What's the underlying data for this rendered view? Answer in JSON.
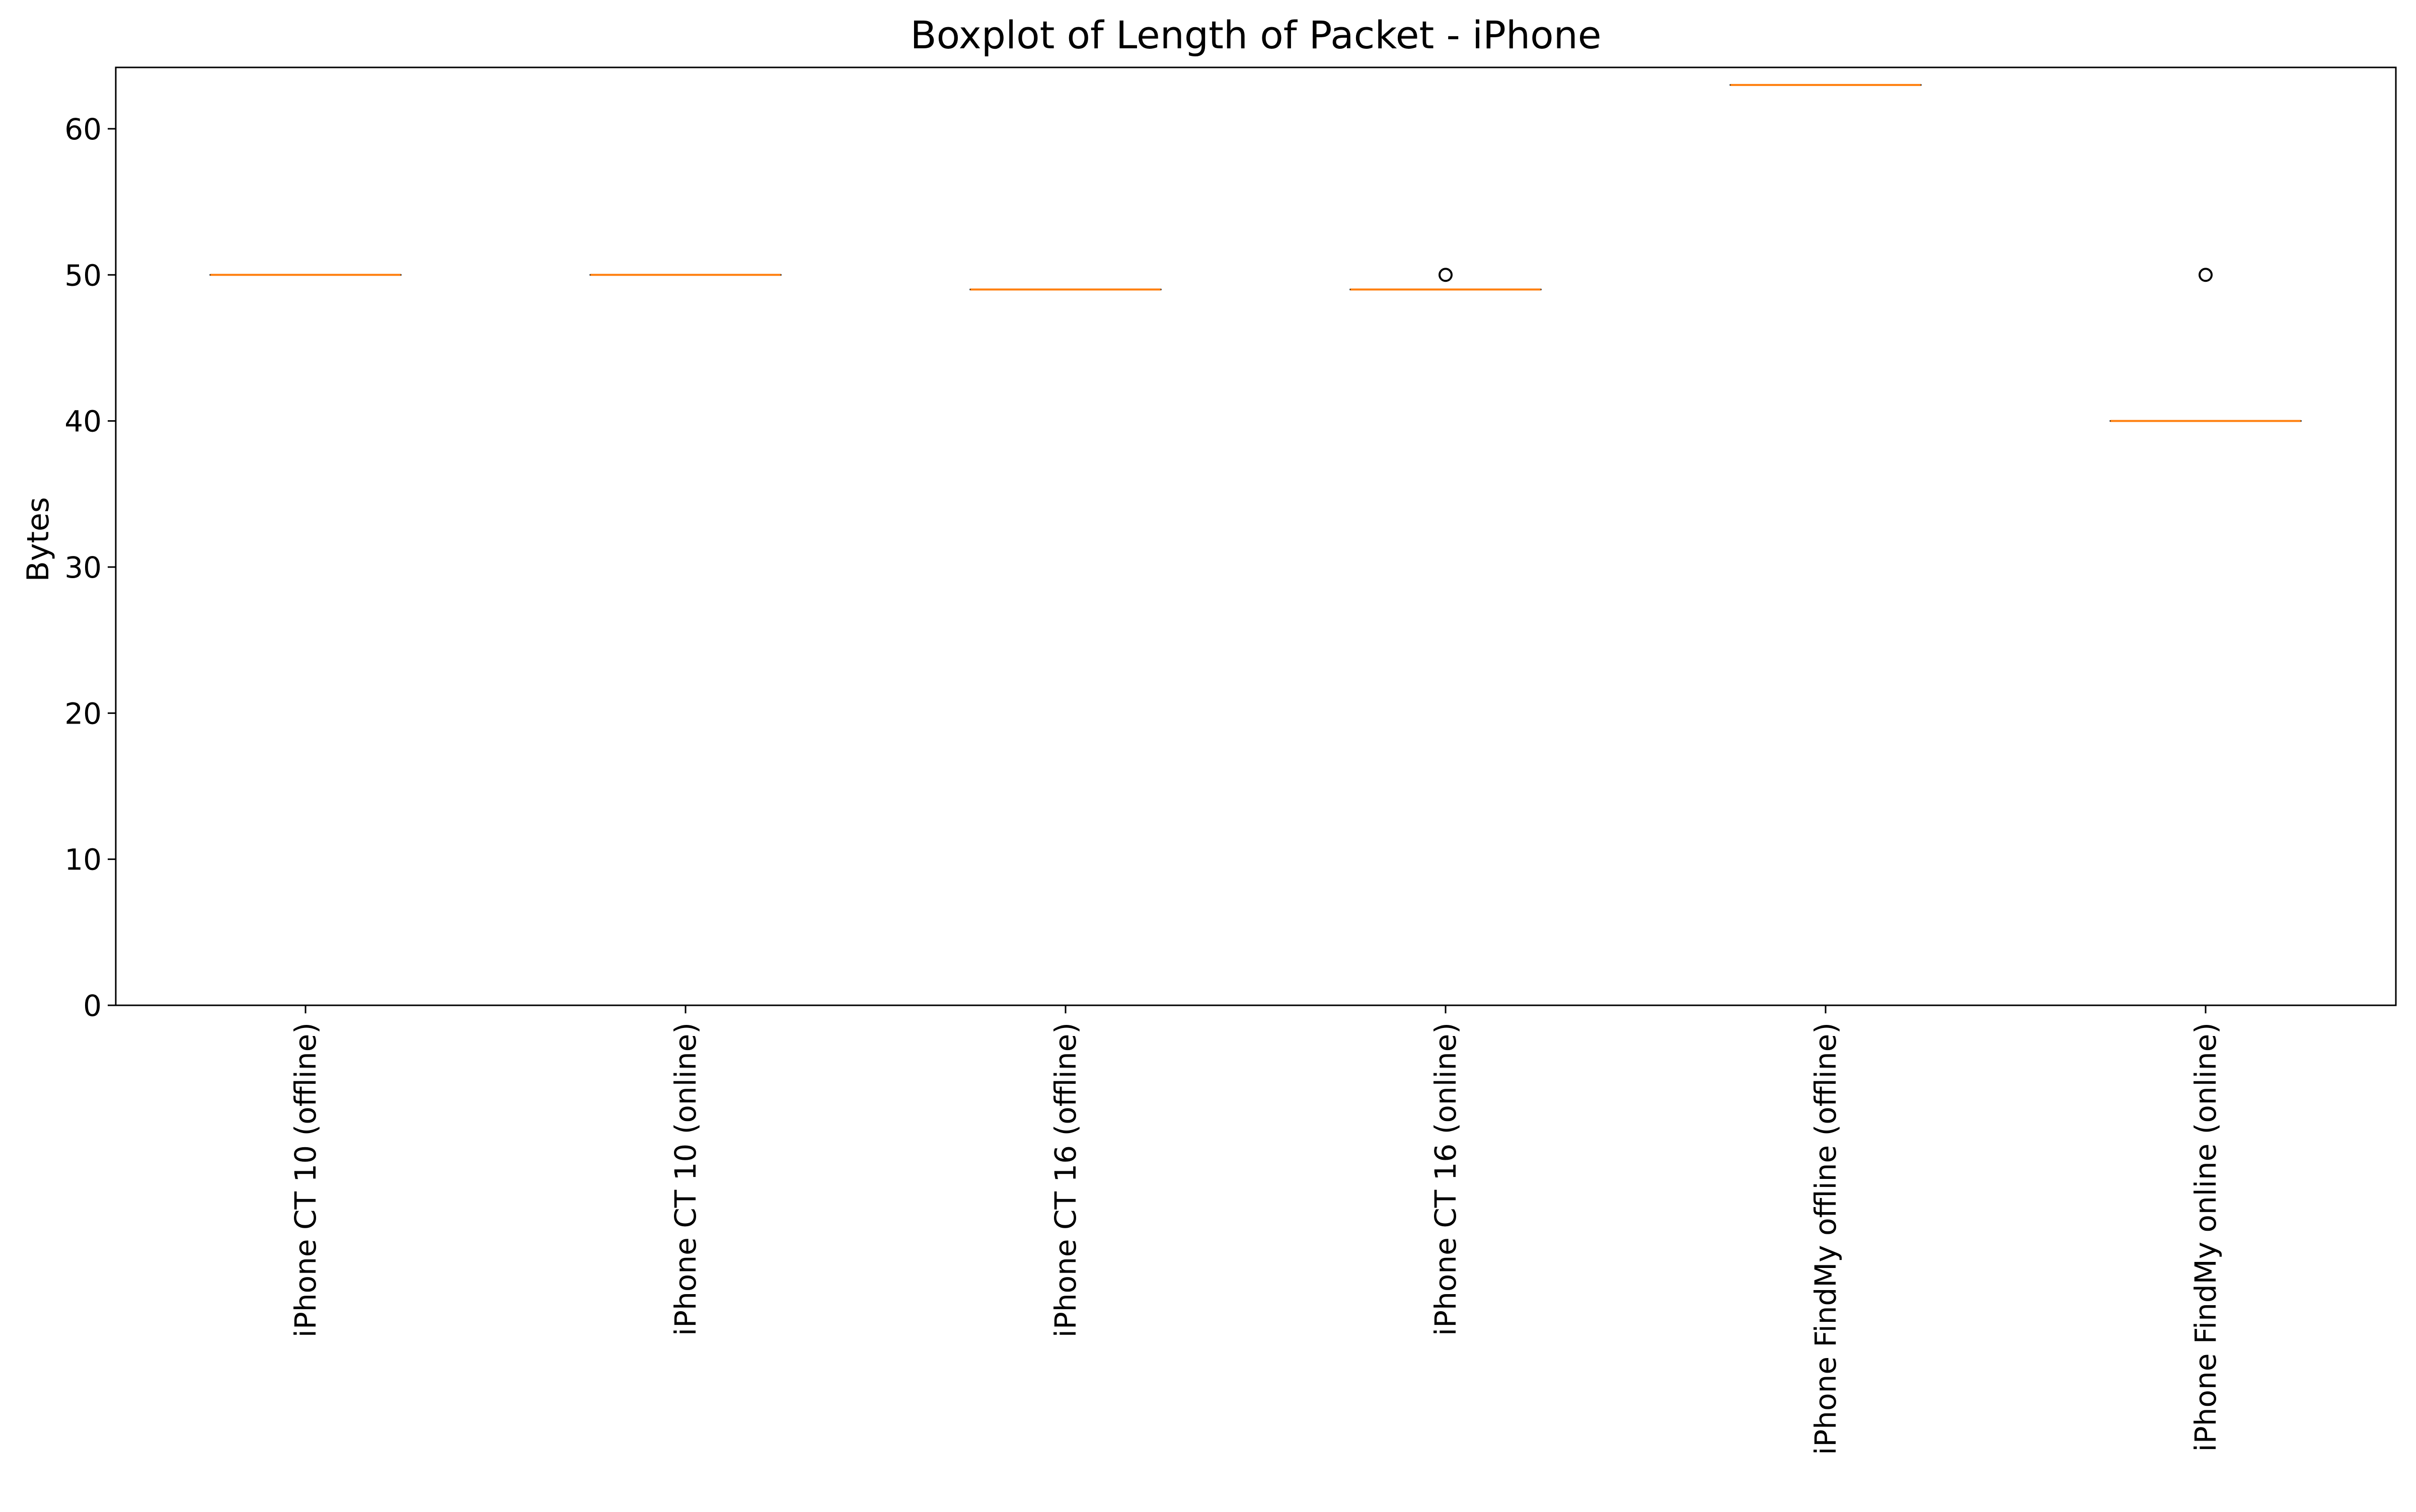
{
  "chart_data": {
    "type": "boxplot",
    "title": "Boxplot of Length of Packet - iPhone",
    "xlabel": "",
    "ylabel": "Bytes",
    "ylim": [
      0,
      64.2
    ],
    "yticks": [
      0,
      10,
      20,
      30,
      40,
      50,
      60
    ],
    "grid": false,
    "categories": [
      "iPhone CT 10 (offline)",
      "iPhone CT 10 (online)",
      "iPhone CT 16 (offline)",
      "iPhone CT 16 (online)",
      "iPhone FindMy offline (offline)",
      "iPhone FindMy online (online)"
    ],
    "boxes": [
      {
        "median": 50,
        "q1": 50,
        "q3": 50,
        "whisker_low": 50,
        "whisker_high": 50,
        "outliers": []
      },
      {
        "median": 50,
        "q1": 50,
        "q3": 50,
        "whisker_low": 50,
        "whisker_high": 50,
        "outliers": []
      },
      {
        "median": 49,
        "q1": 49,
        "q3": 49,
        "whisker_low": 49,
        "whisker_high": 49,
        "outliers": []
      },
      {
        "median": 49,
        "q1": 49,
        "q3": 49,
        "whisker_low": 49,
        "whisker_high": 49,
        "outliers": [
          50
        ]
      },
      {
        "median": 63,
        "q1": 63,
        "q3": 63,
        "whisker_low": 63,
        "whisker_high": 63,
        "outliers": []
      },
      {
        "median": 40,
        "q1": 40,
        "q3": 40,
        "whisker_low": 40,
        "whisker_high": 40,
        "outliers": [
          50
        ]
      }
    ],
    "colors": {
      "median": "#ff7f0e",
      "box": "#000000",
      "outlier": "#000000",
      "axes": "#000000"
    }
  }
}
